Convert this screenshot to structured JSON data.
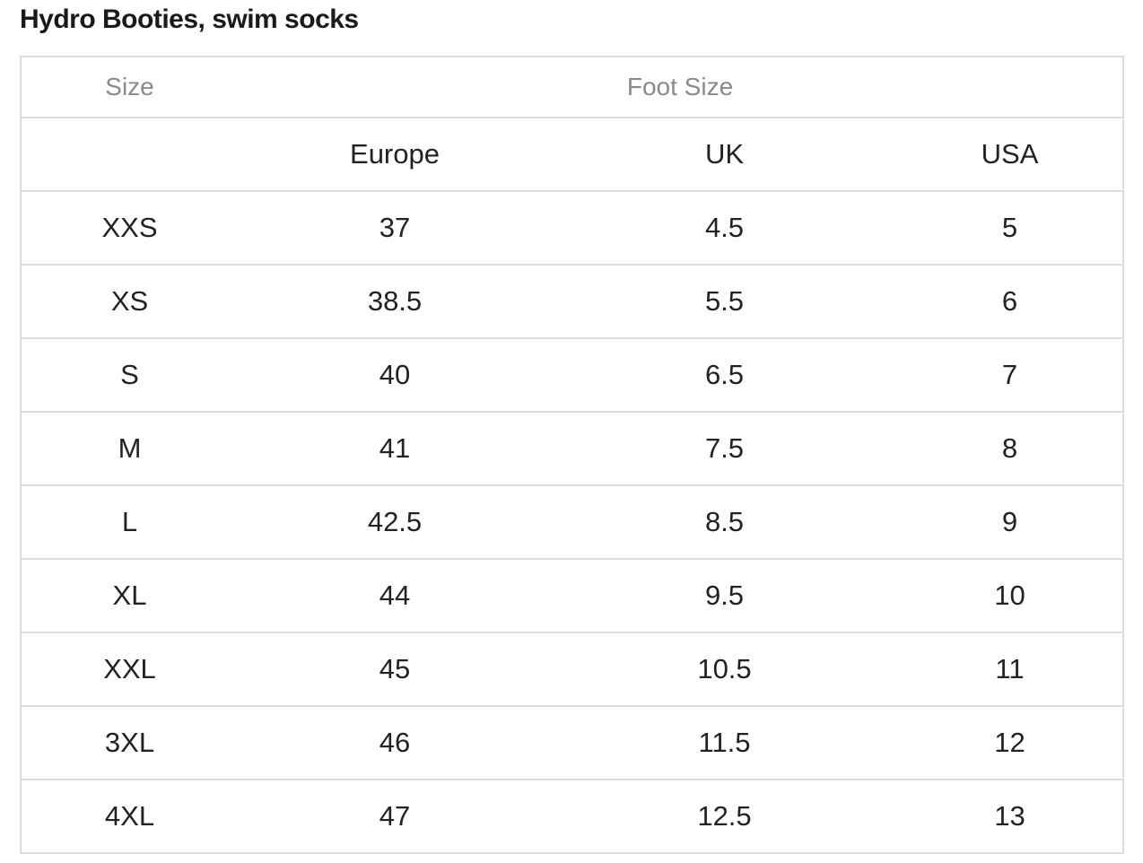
{
  "title": "Hydro Booties, swim socks",
  "table": {
    "header": {
      "size_label": "Size",
      "foot_size_label": "Foot Size"
    },
    "columns": [
      "",
      "Europe",
      "UK",
      "USA"
    ],
    "rows": [
      {
        "size": "XXS",
        "europe": "37",
        "uk": "4.5",
        "usa": "5"
      },
      {
        "size": "XS",
        "europe": "38.5",
        "uk": "5.5",
        "usa": "6"
      },
      {
        "size": "S",
        "europe": "40",
        "uk": "6.5",
        "usa": "7"
      },
      {
        "size": "M",
        "europe": "41",
        "uk": "7.5",
        "usa": "8"
      },
      {
        "size": "L",
        "europe": "42.5",
        "uk": "8.5",
        "usa": "9"
      },
      {
        "size": "XL",
        "europe": "44",
        "uk": "9.5",
        "usa": "10"
      },
      {
        "size": "XXL",
        "europe": "45",
        "uk": "10.5",
        "usa": "11"
      },
      {
        "size": "3XL",
        "europe": "46",
        "uk": "11.5",
        "usa": "12"
      },
      {
        "size": "4XL",
        "europe": "47",
        "uk": "12.5",
        "usa": "13"
      }
    ]
  },
  "colors": {
    "border": "#dcdcdc",
    "header_text": "#8a8a8a",
    "body_text": "#222222",
    "title_text": "#1a1a1a"
  }
}
